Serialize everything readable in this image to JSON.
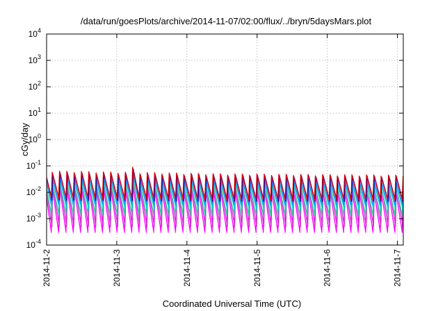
{
  "chart_data": {
    "type": "line",
    "title": "/data/run/goesPlots/archive/2014-11-07/02:00/flux/../bryn/5daysMars.plot",
    "xlabel": "Coordinated Universal Time (UTC)",
    "ylabel": "cGy/day",
    "yscale": "log",
    "ylim": [
      0.0001,
      10000
    ],
    "xlim": [
      "2014-11-02T00:00",
      "2014-11-07T02:00"
    ],
    "grid": true,
    "x_ticks": [
      "2014-11-2",
      "2014-11-3",
      "2014-11-4",
      "2014-11-5",
      "2014-11-6",
      "2014-11-7"
    ],
    "y_ticks": [
      {
        "value": 0.0001,
        "base": "10",
        "exp": "-4"
      },
      {
        "value": 0.001,
        "base": "10",
        "exp": "-3"
      },
      {
        "value": 0.01,
        "base": "10",
        "exp": "-2"
      },
      {
        "value": 0.1,
        "base": "10",
        "exp": "-1"
      },
      {
        "value": 1,
        "base": "10",
        "exp": "0"
      },
      {
        "value": 10,
        "base": "10",
        "exp": "1"
      },
      {
        "value": 100,
        "base": "10",
        "exp": "2"
      },
      {
        "value": 1000,
        "base": "10",
        "exp": "3"
      },
      {
        "value": 10000,
        "base": "10",
        "exp": "4"
      }
    ],
    "cycle_hours": 2.5,
    "series": [
      {
        "color": "#ff00ff",
        "peaks": [
          0.018,
          0.015,
          0.012
        ],
        "troughs": [
          0.0003,
          0.0003,
          0.0003
        ]
      },
      {
        "color": "#cc33cc",
        "peaks": [
          0.022,
          0.018,
          0.016
        ],
        "troughs": [
          0.0005,
          0.0005,
          0.0005
        ]
      },
      {
        "color": "#33cc99",
        "peaks": [
          0.028,
          0.022,
          0.019
        ],
        "troughs": [
          0.0015,
          0.0014,
          0.0013
        ]
      },
      {
        "color": "#00cccc",
        "peaks": [
          0.033,
          0.026,
          0.022
        ],
        "troughs": [
          0.0025,
          0.0022,
          0.0022
        ]
      },
      {
        "color": "#1e90ff",
        "peaks": [
          0.045,
          0.036,
          0.03
        ],
        "troughs": [
          0.004,
          0.0035,
          0.0035
        ]
      },
      {
        "color": "#0000cc",
        "peaks": [
          0.055,
          0.045,
          0.04
        ],
        "troughs": [
          0.005,
          0.0045,
          0.0045
        ]
      },
      {
        "color": "#dd0000",
        "peaks": [
          0.065,
          0.05,
          0.045
        ],
        "troughs": [
          0.006,
          0.005,
          0.005
        ]
      }
    ]
  }
}
